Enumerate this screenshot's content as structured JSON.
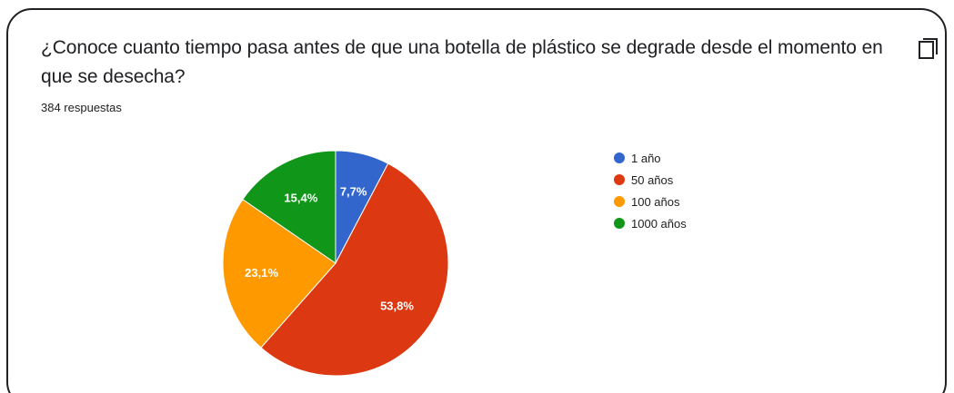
{
  "question": {
    "title": "¿Conoce cuanto tiempo pasa antes de que una botella de plástico se degrade desde el momento en que se desecha?",
    "copy_icon": "copy-icon"
  },
  "responses_label": "384 respuestas",
  "colors": {
    "border": "#202124",
    "text": "#202124",
    "slice_label": "#ffffff"
  },
  "chart_data": {
    "type": "pie",
    "categories": [
      "1 año",
      "50 años",
      "100 años",
      "1000 años"
    ],
    "values": [
      7.7,
      53.8,
      23.1,
      15.4
    ],
    "value_labels": [
      "7,7%",
      "53,8%",
      "23,1%",
      "15,4%"
    ],
    "colors": [
      "#3366cc",
      "#dc3912",
      "#ff9900",
      "#109618"
    ],
    "start_angle_deg": 90,
    "direction": "clockwise",
    "legend_position": "right"
  }
}
